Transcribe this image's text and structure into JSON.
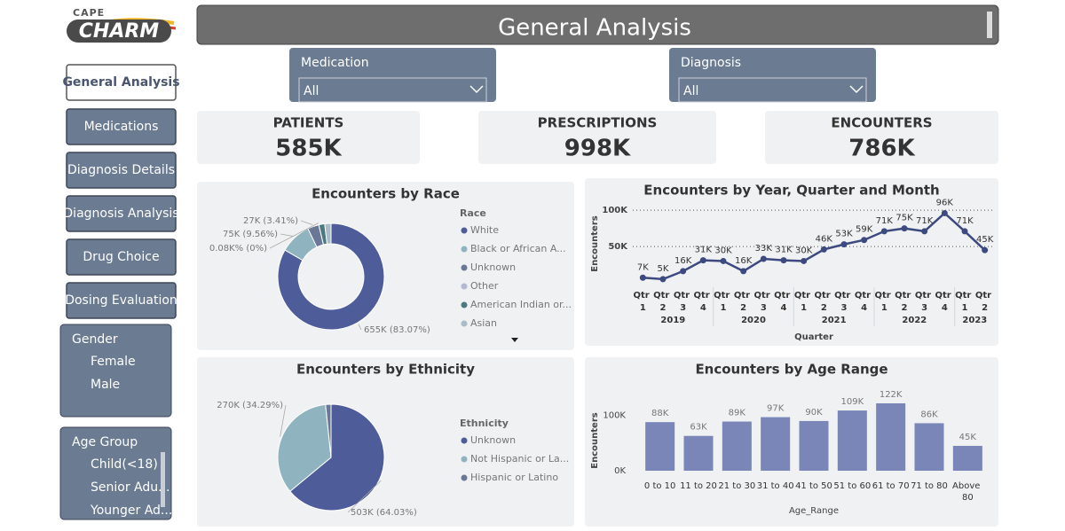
{
  "logo": {
    "top": "CAPE",
    "main": "CHARM"
  },
  "header": {
    "title": "General Analysis"
  },
  "nav": [
    "General Analysis",
    "Medications",
    "Diagnosis Details",
    "Diagnosis Analysis",
    "Drug Choice",
    "Dosing Evaluation"
  ],
  "filters": [
    {
      "label": "Medication",
      "value": "All"
    },
    {
      "label": "Diagnosis",
      "value": "All"
    }
  ],
  "kpis": [
    {
      "label": "PATIENTS",
      "value": "585K"
    },
    {
      "label": "PRESCRIPTIONS",
      "value": "998K"
    },
    {
      "label": "ENCOUNTERS",
      "value": "786K"
    }
  ],
  "slicers": [
    {
      "title": "Gender",
      "items": [
        "Female",
        "Male"
      ]
    },
    {
      "title": "Age Group",
      "items": [
        "Child(<18)",
        "Senior Adu...",
        "Younger Ad..."
      ]
    }
  ],
  "chart_data": [
    {
      "type": "donut",
      "title": "Encounters by Race",
      "legend_title": "Race",
      "categories": [
        "White",
        "Black or African A...",
        "Unknown",
        "Other",
        "American Indian or...",
        "Asian"
      ],
      "values": [
        655000,
        75000,
        27000,
        80,
        14000,
        15000
      ],
      "value_labels": [
        "655K (83.07%)",
        "75K (9.56%)",
        "27K (3.41%)",
        "0.08K% (0%)",
        null,
        null
      ],
      "colors": [
        "#4e5d9a",
        "#8fb3bf",
        "#6b7796",
        "#b3b8d4",
        "#4a7a80",
        "#a9bcc8"
      ]
    },
    {
      "type": "pie",
      "title": "Encounters by Ethnicity",
      "legend_title": "Ethnicity",
      "categories": [
        "Unknown",
        "Not Hispanic or La...",
        "Hispanic or Latino"
      ],
      "values": [
        503000,
        270000,
        13000
      ],
      "value_labels": [
        "503K (64.03%)",
        "270K (34.29%)",
        null
      ],
      "colors": [
        "#4e5d9a",
        "#8fb3bf",
        "#6b7796"
      ]
    },
    {
      "type": "line",
      "title": "Encounters by Year, Quarter and Month",
      "x_label": "Quarter",
      "y_label": "Encounters",
      "categories": [
        "Qtr 1",
        "Qtr 2",
        "Qtr 3",
        "Qtr 4",
        "Qtr 1",
        "Qtr 2",
        "Qtr 3",
        "Qtr 4",
        "Qtr 1",
        "Qtr 2",
        "Qtr 3",
        "Qtr 4",
        "Qtr 1",
        "Qtr 2",
        "Qtr 3",
        "Qtr 4",
        "Qtr 1",
        "Qtr 2"
      ],
      "years": [
        "2019",
        "2019",
        "2019",
        "2019",
        "2020",
        "2020",
        "2020",
        "2020",
        "2021",
        "2021",
        "2021",
        "2021",
        "2022",
        "2022",
        "2022",
        "2022",
        "2023",
        "2023"
      ],
      "values": [
        7000,
        5000,
        16000,
        31000,
        30000,
        16000,
        33000,
        31000,
        30000,
        46000,
        53000,
        59000,
        71000,
        75000,
        71000,
        96000,
        71000,
        45000
      ],
      "value_labels": [
        "7K",
        "5K",
        "16K",
        "31K",
        "30K",
        "16K",
        "33K",
        "31K",
        "30K",
        "46K",
        "53K",
        "59K",
        "71K",
        "75K",
        "71K",
        "96K",
        "71K",
        "45K"
      ],
      "ylim": [
        0,
        110000
      ],
      "yticks": [
        {
          "value": 50000,
          "label": "50K"
        },
        {
          "value": 100000,
          "label": "100K"
        }
      ],
      "grid": true,
      "color": "#3d4a80"
    },
    {
      "type": "bar",
      "title": "Encounters by Age Range",
      "x_label": "Age_Range",
      "y_label": "Encounters",
      "categories": [
        "0 to 10",
        "11 to 20",
        "21 to 30",
        "31 to 40",
        "41 to 50",
        "51 to 60",
        "61 to 70",
        "71 to 80",
        "Above 80"
      ],
      "values": [
        88000,
        63000,
        89000,
        97000,
        90000,
        109000,
        122000,
        86000,
        45000
      ],
      "value_labels": [
        "88K",
        "63K",
        "89K",
        "97K",
        "90K",
        "109K",
        "122K",
        "86K",
        "45K"
      ],
      "ylim": [
        0,
        130000
      ],
      "yticks": [
        {
          "value": 0,
          "label": "0K"
        },
        {
          "value": 100000,
          "label": "100K"
        }
      ],
      "grid": false,
      "color": "#7a86b8"
    }
  ]
}
